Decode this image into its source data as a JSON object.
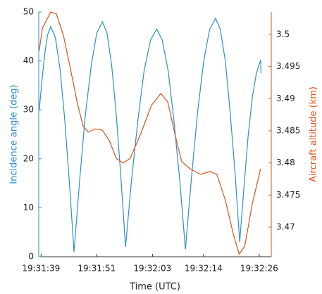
{
  "chart_data": {
    "type": "line",
    "xlabel": "Time (UTC)",
    "ylabel": "Incidence angle (deg)",
    "y2label": "Aircraft altitude (km)",
    "xlim": [
      38.5,
      88.6
    ],
    "xticks": [
      {
        "value": 39,
        "label": "19:31:39"
      },
      {
        "value": 51,
        "label": "19:31:51"
      },
      {
        "value": 63,
        "label": "19:32:03"
      },
      {
        "value": 74,
        "label": "19:32:14"
      },
      {
        "value": 86,
        "label": "19:32:26"
      }
    ],
    "ylim": [
      0,
      50
    ],
    "yticks": [
      0,
      10,
      20,
      30,
      40,
      50
    ],
    "y2lim": [
      3.4654,
      3.5035
    ],
    "y2ticks": [
      3.47,
      3.475,
      3.48,
      3.485,
      3.49,
      3.495,
      3.5
    ],
    "ycolor": "#2a8fd0",
    "y2color": "#d95319",
    "series": [
      {
        "name": "Incidence angle (deg)",
        "color": "#2a8fd0",
        "axis": "y",
        "x": [
          38.6,
          39.2,
          39.8,
          40.4,
          41.1,
          42.1,
          43.1,
          44.1,
          45.1,
          46.1,
          47.3,
          48.5,
          49.8,
          51.0,
          52.2,
          53.2,
          54.2,
          55.2,
          56.2,
          57.2,
          58.5,
          59.9,
          61.2,
          62.6,
          63.9,
          65.1,
          66.4,
          67.6,
          68.9,
          70.1,
          71.4,
          72.7,
          74.0,
          75.3,
          76.6,
          77.6,
          78.7,
          79.7,
          80.8,
          81.8,
          82.7,
          83.6,
          84.5,
          85.4,
          86.3,
          86.4
        ],
        "values": [
          30,
          36,
          41.5,
          45.3,
          47,
          44.7,
          38.2,
          28.0,
          15.2,
          1,
          15.5,
          28.6,
          39.0,
          45.7,
          48,
          45.7,
          39.2,
          29.0,
          16.2,
          2,
          15.8,
          28.2,
          38.0,
          44.3,
          46.5,
          44.3,
          37.9,
          28.0,
          15.4,
          1.5,
          16.1,
          29.3,
          39.7,
          46.4,
          48.7,
          46.5,
          40.0,
          29.9,
          17.1,
          3,
          14,
          24.5,
          32.5,
          37.5,
          40.2,
          37.5
        ]
      },
      {
        "name": "Aircraft altitude (km)",
        "color": "#d95319",
        "axis": "y2",
        "x": [
          38.6,
          39.3,
          41.1,
          42.3,
          43.8,
          45.4,
          46.9,
          48.1,
          49.2,
          50.7,
          52.2,
          53.7,
          55.2,
          56.7,
          58.2,
          60.5,
          62.8,
          64.8,
          66.3,
          67.8,
          69.3,
          71.1,
          73.4,
          75.4,
          76.9,
          78.7,
          80.5,
          81.7,
          82.9,
          84.5,
          86.3
        ],
        "values": [
          3.4975,
          3.501,
          3.5035,
          3.5032,
          3.4999,
          3.4944,
          3.489,
          3.4857,
          3.4848,
          3.4853,
          3.4851,
          3.4835,
          3.4807,
          3.48,
          3.4807,
          3.4846,
          3.489,
          3.4908,
          3.4895,
          3.4846,
          3.4802,
          3.4791,
          3.4782,
          3.4787,
          3.4782,
          3.4742,
          3.4687,
          3.4658,
          3.4671,
          3.4736,
          3.4791
        ]
      }
    ]
  }
}
